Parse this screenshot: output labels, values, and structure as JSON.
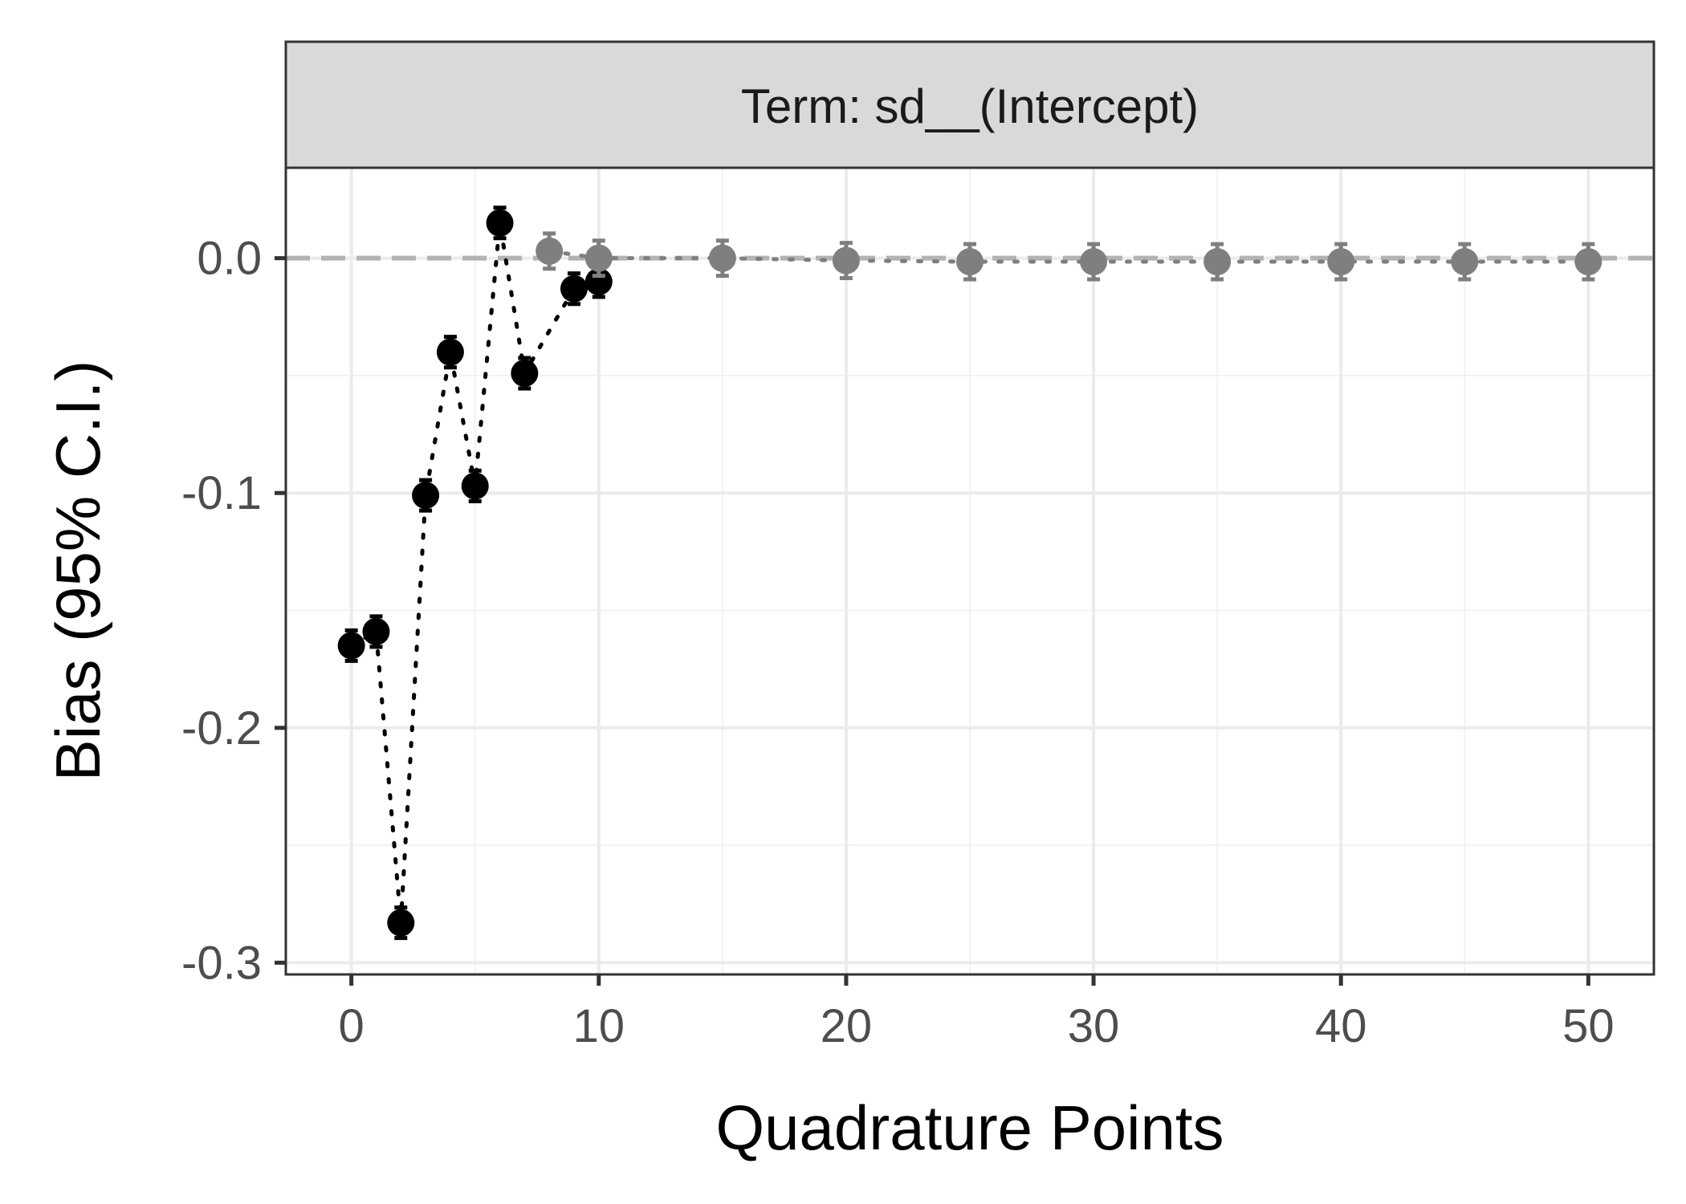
{
  "chart_data": {
    "type": "scatter",
    "facet_label": "Term: sd__(Intercept)",
    "xlabel": "Quadrature Points",
    "ylabel": "Bias (95% C.I.)",
    "xlim": [
      -2.65,
      52.65
    ],
    "ylim": [
      -0.305,
      0.0385
    ],
    "x_ticks": [
      0,
      10,
      20,
      30,
      40,
      50
    ],
    "x_tick_labels": [
      "0",
      "10",
      "20",
      "30",
      "40",
      "50"
    ],
    "y_ticks": [
      0.0,
      -0.1,
      -0.2,
      -0.3
    ],
    "y_tick_labels": [
      "0.0",
      "-0.1",
      "-0.2",
      "-0.3"
    ],
    "grid": true,
    "reference_line": {
      "y": 0,
      "style": "dashed",
      "color": "#b3b3b3"
    },
    "series": [
      {
        "color": "#000000",
        "x": [
          0,
          1,
          2,
          3,
          4,
          5,
          6,
          7,
          9,
          10
        ],
        "y": [
          -0.165,
          -0.159,
          -0.283,
          -0.101,
          -0.04,
          -0.097,
          0.015,
          -0.049,
          -0.013,
          -0.01
        ],
        "ci_half_width": [
          0.0065,
          0.0065,
          0.0065,
          0.0065,
          0.0065,
          0.0065,
          0.0065,
          0.0065,
          0.0065,
          0.0065
        ]
      },
      {
        "color": "#7f7f7f",
        "x": [
          8,
          10,
          15,
          20,
          25,
          30,
          35,
          40,
          45,
          50
        ],
        "y": [
          0.003,
          0.0,
          0.0,
          -0.001,
          -0.0015,
          -0.0015,
          -0.0015,
          -0.0015,
          -0.0015,
          -0.0015
        ],
        "ci_half_width": [
          0.0075,
          0.0075,
          0.0075,
          0.0075,
          0.0075,
          0.0075,
          0.0075,
          0.0075,
          0.0075,
          0.0075
        ]
      }
    ]
  }
}
